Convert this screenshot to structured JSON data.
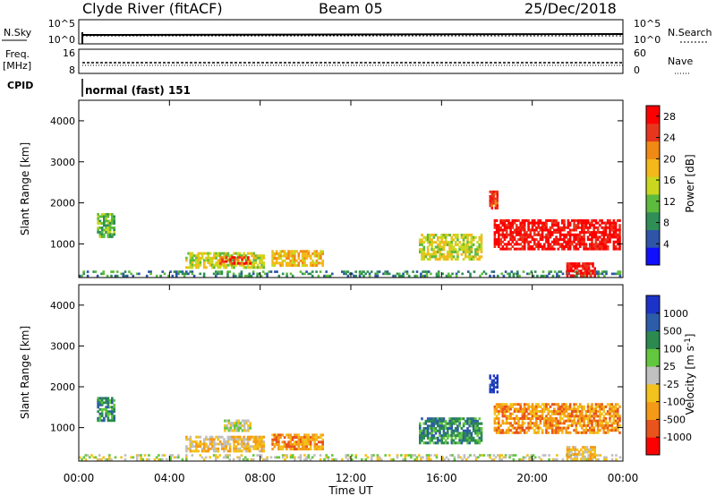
{
  "header": {
    "station": "Clyde River (fitACF)",
    "beam": "Beam 05",
    "date": "25/Dec/2018"
  },
  "top_panels": {
    "nsky_label": "N.Sky",
    "nsky_ticks": [
      "10^5",
      "10^0"
    ],
    "nsearch_label": "N.Search",
    "nsearch_ticks": [
      "10^5",
      "10^0"
    ],
    "freq_label": "Freq.",
    "freq_unit": "[MHz]",
    "freq_ticks": [
      "16",
      "8"
    ],
    "nave_label": "Nave",
    "nave_ticks": [
      "60",
      "0"
    ],
    "cpid_label": "CPID",
    "cpid_text": "normal (fast) 151"
  },
  "colors": {
    "power_scale": [
      "#1010ff",
      "#2e55a8",
      "#2f8f57",
      "#5dbb3d",
      "#c9d81e",
      "#f5b81a",
      "#f08a14",
      "#e8361e",
      "#ff0000"
    ],
    "velocity_scale": [
      "#1c33c9",
      "#2d5da8",
      "#2c8a50",
      "#63c73e",
      "#c0c0c0",
      "#f3c11b",
      "#f59a16",
      "#e8541c",
      "#ff0000"
    ]
  },
  "chart_data": [
    {
      "type": "heatmap",
      "title": "Power",
      "xlabel": "Time UT",
      "ylabel": "Slant Range [km]",
      "x_ticks": [
        "00:00",
        "04:00",
        "08:00",
        "12:00",
        "16:00",
        "20:00",
        "00:00"
      ],
      "xlim_hours": [
        0,
        24
      ],
      "y_ticks": [
        1000,
        2000,
        3000,
        4000
      ],
      "ylim_km": [
        180,
        4500
      ],
      "colorbar": {
        "label": "Power [dB]",
        "ticks": [
          4,
          8,
          12,
          16,
          20,
          24,
          28
        ],
        "range": [
          0,
          30
        ]
      },
      "echo_regions": [
        {
          "t_start": 0.8,
          "t_end": 1.6,
          "r_min": 1150,
          "r_max": 1750,
          "level": 12
        },
        {
          "t_start": 0.0,
          "t_end": 24.0,
          "r_min": 200,
          "r_max": 350,
          "level": 8
        },
        {
          "t_start": 4.7,
          "t_end": 8.2,
          "r_min": 400,
          "r_max": 800,
          "level": 16
        },
        {
          "t_start": 6.2,
          "t_end": 7.6,
          "r_min": 500,
          "r_max": 700,
          "level": 24
        },
        {
          "t_start": 8.5,
          "t_end": 10.8,
          "r_min": 450,
          "r_max": 850,
          "level": 18
        },
        {
          "t_start": 15.0,
          "t_end": 17.8,
          "r_min": 600,
          "r_max": 1250,
          "level": 16
        },
        {
          "t_start": 18.1,
          "t_end": 18.5,
          "r_min": 1850,
          "r_max": 2300,
          "level": 24
        },
        {
          "t_start": 18.3,
          "t_end": 23.9,
          "r_min": 850,
          "r_max": 1600,
          "level": 28
        },
        {
          "t_start": 21.5,
          "t_end": 22.8,
          "r_min": 200,
          "r_max": 550,
          "level": 28
        }
      ]
    },
    {
      "type": "heatmap",
      "title": "Velocity",
      "xlabel": "Time UT",
      "ylabel": "Slant Range [km]",
      "x_ticks": [
        "00:00",
        "04:00",
        "08:00",
        "12:00",
        "16:00",
        "20:00",
        "00:00"
      ],
      "xlim_hours": [
        0,
        24
      ],
      "y_ticks": [
        1000,
        2000,
        3000,
        4000
      ],
      "ylim_km": [
        180,
        4500
      ],
      "colorbar": {
        "label": "Velocity [m s-1]",
        "ticks": [
          1000,
          500,
          100,
          25,
          -25,
          -100,
          -500,
          -1000
        ]
      },
      "echo_regions": [
        {
          "t_start": 0.8,
          "t_end": 1.6,
          "r_min": 1150,
          "r_max": 1750,
          "level": 100
        },
        {
          "t_start": 0.0,
          "t_end": 24.0,
          "r_min": 200,
          "r_max": 350,
          "level": 0
        },
        {
          "t_start": 4.7,
          "t_end": 8.2,
          "r_min": 400,
          "r_max": 800,
          "level": -100
        },
        {
          "t_start": 6.4,
          "t_end": 7.6,
          "r_min": 900,
          "r_max": 1200,
          "level": 0
        },
        {
          "t_start": 8.5,
          "t_end": 10.8,
          "r_min": 450,
          "r_max": 850,
          "level": -500
        },
        {
          "t_start": 15.0,
          "t_end": 17.8,
          "r_min": 600,
          "r_max": 1250,
          "level": 100
        },
        {
          "t_start": 18.1,
          "t_end": 18.5,
          "r_min": 1850,
          "r_max": 2300,
          "level": 1000
        },
        {
          "t_start": 18.3,
          "t_end": 23.9,
          "r_min": 850,
          "r_max": 1600,
          "level": -500
        },
        {
          "t_start": 21.5,
          "t_end": 22.8,
          "r_min": 200,
          "r_max": 550,
          "level": -100
        }
      ]
    }
  ]
}
